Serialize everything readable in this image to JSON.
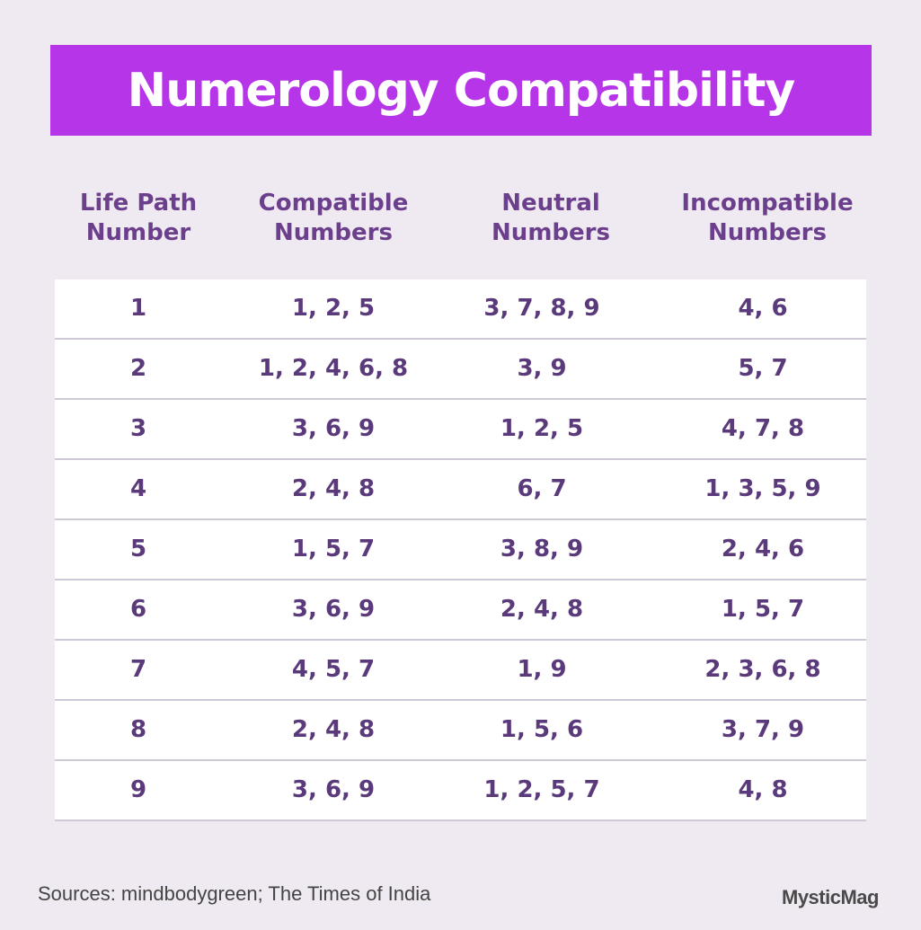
{
  "title": "Numerology Compatibility",
  "headers": [
    [
      "Life Path",
      "Number"
    ],
    [
      "Compatible",
      "Numbers"
    ],
    [
      "Neutral",
      "Numbers"
    ],
    [
      "Incompatible",
      "Numbers"
    ]
  ],
  "rows": [
    [
      "1",
      "1, 2, 5",
      "3, 7, 8, 9",
      "4, 6"
    ],
    [
      "2",
      "1, 2, 4, 6, 8",
      "3, 9",
      "5, 7"
    ],
    [
      "3",
      "3, 6, 9",
      "1, 2, 5",
      "4, 7, 8"
    ],
    [
      "4",
      "2, 4, 8",
      "6, 7",
      "1, 3, 5, 9"
    ],
    [
      "5",
      "1, 5, 7",
      "3, 8, 9",
      "2, 4, 6"
    ],
    [
      "6",
      "3, 6, 9",
      "2, 4, 8",
      "1, 5, 7"
    ],
    [
      "7",
      "4, 5, 7",
      "1, 9",
      "2, 3, 6, 8"
    ],
    [
      "8",
      "2, 4, 8",
      "1, 5, 6",
      "3, 7, 9"
    ],
    [
      "9",
      "3, 6, 9",
      "1, 2, 5, 7",
      "4, 8"
    ]
  ],
  "footer": {
    "sources": "Sources: mindbodygreen; The Times of India",
    "logo": "MysticMag"
  },
  "colors": {
    "banner": "#b735e8",
    "header_text": "#6b3f8c",
    "cell_text": "#5a3a7a",
    "background": "#efeaf2"
  }
}
